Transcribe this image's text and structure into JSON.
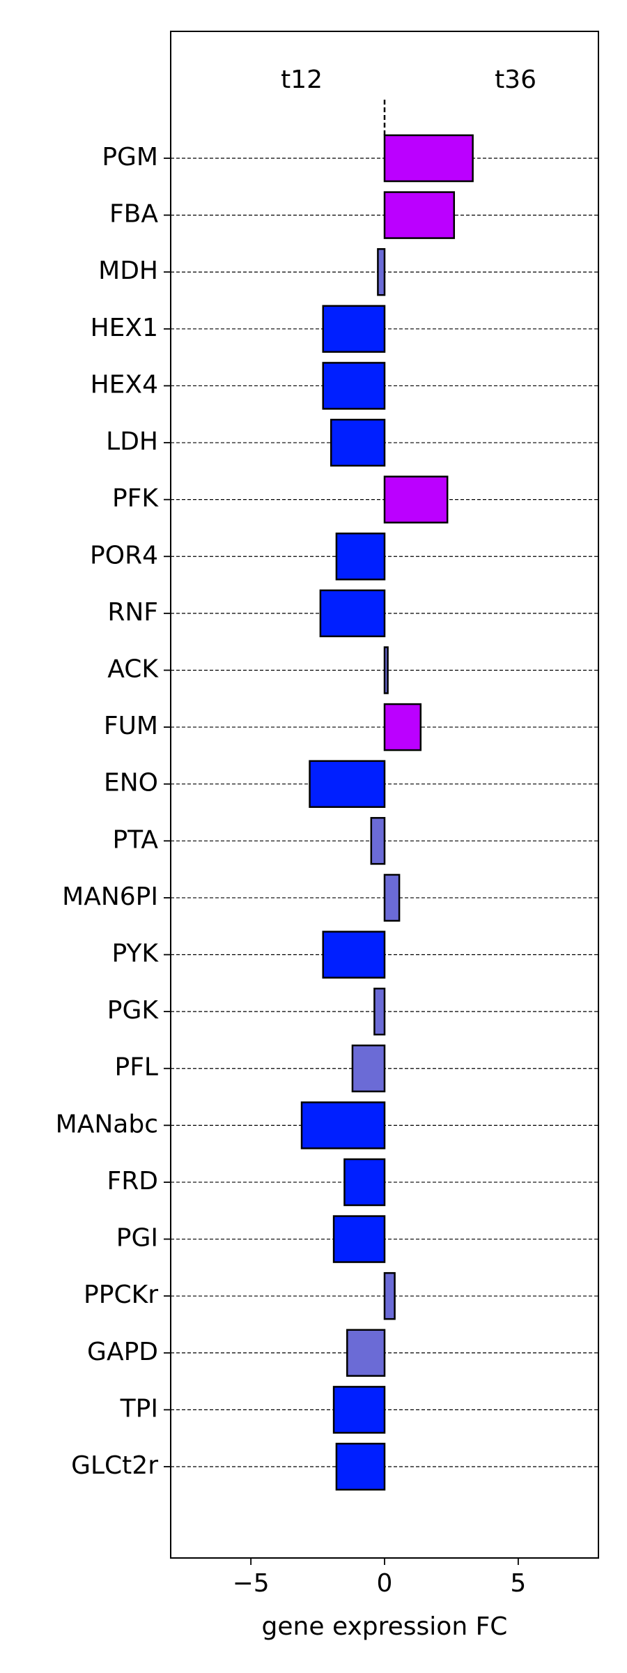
{
  "chart_data": {
    "type": "bar",
    "orientation": "horizontal",
    "title": "",
    "xlabel": "gene expression FC",
    "ylabel": "",
    "xlim": [
      -8,
      8
    ],
    "xticks": [
      -5,
      0,
      5
    ],
    "xtick_labels": [
      "−5",
      "0",
      "5"
    ],
    "grid": "horizontal dashed lines at each category",
    "legend": "none",
    "annotations": {
      "left": "t12",
      "right": "t36"
    },
    "zero_line": "dashed vertical line at x = 0 above the bars",
    "categories": [
      "PGM",
      "FBA",
      "MDH",
      "HEX1",
      "HEX4",
      "LDH",
      "PFK",
      "POR4",
      "RNF",
      "ACK",
      "FUM",
      "ENO",
      "PTA",
      "MAN6PI",
      "PYK",
      "PGK",
      "PFL",
      "MANabc",
      "FRD",
      "PGI",
      "PPCKr",
      "GAPD",
      "TPI",
      "GLCt2r"
    ],
    "values": [
      3.3,
      2.6,
      -0.25,
      -2.3,
      -2.3,
      -2.0,
      2.35,
      -1.8,
      -2.4,
      0.12,
      1.35,
      -2.8,
      -0.5,
      0.55,
      -2.3,
      -0.38,
      -1.2,
      -3.1,
      -1.5,
      -1.9,
      0.38,
      -1.4,
      -1.9,
      -1.8
    ],
    "bar_colors": [
      "#bb00ff",
      "#bb00ff",
      "#6b6bd6",
      "#001fff",
      "#001fff",
      "#001fff",
      "#bb00ff",
      "#001fff",
      "#001fff",
      "#6b6bd6",
      "#bb00ff",
      "#001fff",
      "#6b6bd6",
      "#6b6bd6",
      "#001fff",
      "#6b6bd6",
      "#6b6bd6",
      "#001fff",
      "#001fff",
      "#001fff",
      "#6b6bd6",
      "#6b6bd6",
      "#001fff",
      "#001fff"
    ],
    "colors": {
      "positive_strong": "#bb00ff",
      "negative_strong": "#001fff",
      "weak": "#6b6bd6",
      "edge": "#000000"
    }
  }
}
